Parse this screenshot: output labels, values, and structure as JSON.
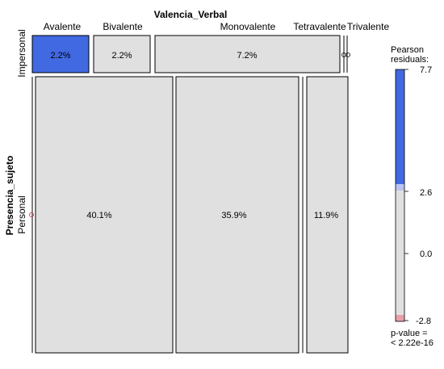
{
  "chart_data": {
    "type": "mosaic",
    "title": "Valencia_Verbal",
    "x_variable": "Valencia_Verbal",
    "y_variable": "Presencia_sujeto",
    "columns": [
      "Avalente",
      "Bivalente",
      "Monovalente",
      "Tetravalente",
      "Trivalente"
    ],
    "rows": [
      "Impersonal",
      "Personal"
    ],
    "cells": [
      {
        "row": "Impersonal",
        "col": "Avalente",
        "percent": 2.2,
        "label": "2.2%",
        "residual_color": "#4169e1"
      },
      {
        "row": "Impersonal",
        "col": "Bivalente",
        "percent": 2.2,
        "label": "2.2%",
        "residual_color": "#e0e0e0"
      },
      {
        "row": "Impersonal",
        "col": "Monovalente",
        "percent": 7.2,
        "label": "7.2%",
        "residual_color": "#e0e0e0"
      },
      {
        "row": "Impersonal",
        "col": "Tetravalente",
        "percent": 0,
        "label": "",
        "residual_color": "#e0e0e0"
      },
      {
        "row": "Impersonal",
        "col": "Trivalente",
        "percent": 0,
        "label": "",
        "residual_color": "#e0e0e0"
      },
      {
        "row": "Personal",
        "col": "Avalente",
        "percent": 40.1,
        "label": "40.1%",
        "residual_color": "#e0e0e0"
      },
      {
        "row": "Personal",
        "col": "Bivalente",
        "percent": 35.9,
        "label": "35.9%",
        "residual_color": "#e0e0e0"
      },
      {
        "row": "Personal",
        "col": "Monovalente",
        "percent": 0,
        "label": "",
        "residual_color": "#e0e0e0"
      },
      {
        "row": "Personal",
        "col": "Tetravalente",
        "percent": 11.9,
        "label": "11.9%",
        "residual_color": "#e0e0e0"
      },
      {
        "row": "Personal",
        "col": "Trivalente",
        "percent": 0,
        "label": "",
        "residual_color": "#e0e0e0"
      }
    ],
    "legend": {
      "title_line1": "Pearson",
      "title_line2": "residuals:",
      "ticks": [
        "7.7",
        "2.6",
        "0.0",
        "-2.8"
      ],
      "pvalue_line1": "p-value =",
      "pvalue_line2": "< 2.22e-16",
      "colors": {
        "high": "#4169e1",
        "mid_high": "#b9c4f0",
        "neutral": "#e0e0e0",
        "low": "#e8a0a8"
      }
    }
  }
}
